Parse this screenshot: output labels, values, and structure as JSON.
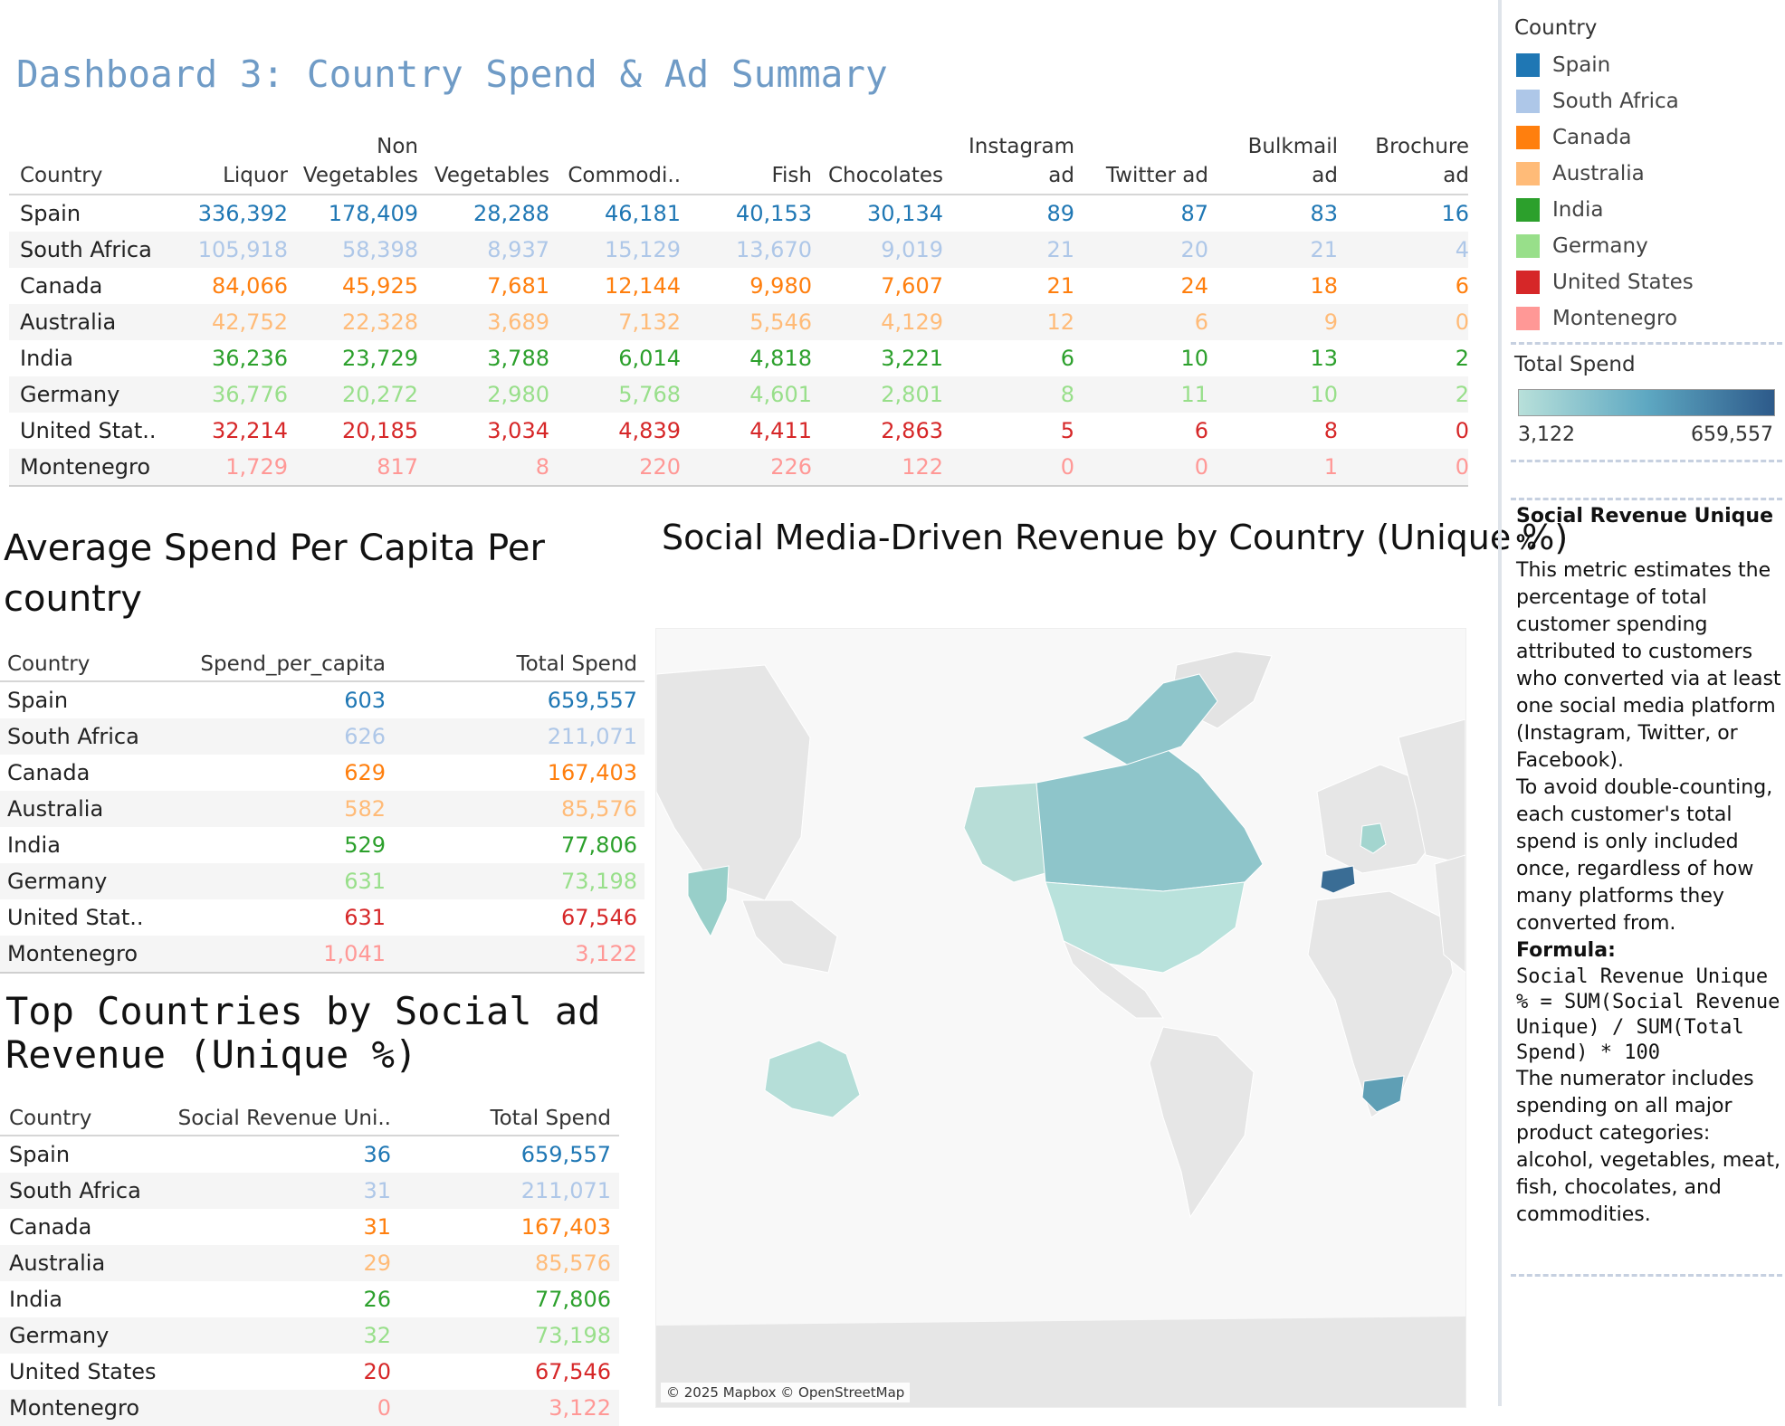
{
  "dashboard_title": "Dashboard 3: Country Spend & Ad Summary",
  "colors": {
    "Spain": "#1f77b4",
    "South Africa": "#aec7e8",
    "Canada": "#ff7f0e",
    "Australia": "#ffbb78",
    "India": "#2ca02c",
    "Germany": "#98df8a",
    "United States": "#d62728",
    "Montenegro": "#ff9896"
  },
  "top_table": {
    "headers": {
      "country": "Country",
      "liquor": "Liquor",
      "non_veg_1": "Non",
      "non_veg_2": "Vegetables",
      "vegetables": "Vegetables",
      "commodities": "Commodi..",
      "fish": "Fish",
      "chocolates": "Chocolates",
      "instagram_1": "Instagram",
      "instagram_2": "ad",
      "twitter": "Twitter ad",
      "bulkmail_1": "Bulkmail",
      "bulkmail_2": "ad",
      "brochure_1": "Brochure",
      "brochure_2": "ad"
    },
    "rows": [
      {
        "country": "Spain",
        "color_key": "Spain",
        "liquor": "336,392",
        "nonveg": "178,409",
        "veg": "28,288",
        "comm": "46,181",
        "fish": "40,153",
        "choc": "30,134",
        "insta": "89",
        "twitter": "87",
        "bulk": "83",
        "broch": "16"
      },
      {
        "country": "South Africa",
        "color_key": "South Africa",
        "liquor": "105,918",
        "nonveg": "58,398",
        "veg": "8,937",
        "comm": "15,129",
        "fish": "13,670",
        "choc": "9,019",
        "insta": "21",
        "twitter": "20",
        "bulk": "21",
        "broch": "4"
      },
      {
        "country": "Canada",
        "color_key": "Canada",
        "liquor": "84,066",
        "nonveg": "45,925",
        "veg": "7,681",
        "comm": "12,144",
        "fish": "9,980",
        "choc": "7,607",
        "insta": "21",
        "twitter": "24",
        "bulk": "18",
        "broch": "6"
      },
      {
        "country": "Australia",
        "color_key": "Australia",
        "liquor": "42,752",
        "nonveg": "22,328",
        "veg": "3,689",
        "comm": "7,132",
        "fish": "5,546",
        "choc": "4,129",
        "insta": "12",
        "twitter": "6",
        "bulk": "9",
        "broch": "0"
      },
      {
        "country": "India",
        "color_key": "India",
        "liquor": "36,236",
        "nonveg": "23,729",
        "veg": "3,788",
        "comm": "6,014",
        "fish": "4,818",
        "choc": "3,221",
        "insta": "6",
        "twitter": "10",
        "bulk": "13",
        "broch": "2"
      },
      {
        "country": "Germany",
        "color_key": "Germany",
        "liquor": "36,776",
        "nonveg": "20,272",
        "veg": "2,980",
        "comm": "5,768",
        "fish": "4,601",
        "choc": "2,801",
        "insta": "8",
        "twitter": "11",
        "bulk": "10",
        "broch": "2"
      },
      {
        "country": "United Stat..",
        "color_key": "United States",
        "liquor": "32,214",
        "nonveg": "20,185",
        "veg": "3,034",
        "comm": "4,839",
        "fish": "4,411",
        "choc": "2,863",
        "insta": "5",
        "twitter": "6",
        "bulk": "8",
        "broch": "0"
      },
      {
        "country": "Montenegro",
        "color_key": "Montenegro",
        "liquor": "1,729",
        "nonveg": "817",
        "veg": "8",
        "comm": "220",
        "fish": "226",
        "choc": "122",
        "insta": "0",
        "twitter": "0",
        "bulk": "1",
        "broch": "0"
      }
    ]
  },
  "per_capita": {
    "title": "Average Spend Per Capita Per country",
    "headers": {
      "country": "Country",
      "spend": "Spend_per_capita",
      "total": "Total Spend"
    },
    "rows": [
      {
        "country": "Spain",
        "color_key": "Spain",
        "spend": "603",
        "total": "659,557"
      },
      {
        "country": "South Africa",
        "color_key": "South Africa",
        "spend": "626",
        "total": "211,071"
      },
      {
        "country": "Canada",
        "color_key": "Canada",
        "spend": "629",
        "total": "167,403"
      },
      {
        "country": "Australia",
        "color_key": "Australia",
        "spend": "582",
        "total": "85,576"
      },
      {
        "country": "India",
        "color_key": "India",
        "spend": "529",
        "total": "77,806"
      },
      {
        "country": "Germany",
        "color_key": "Germany",
        "spend": "631",
        "total": "73,198"
      },
      {
        "country": "United Stat..",
        "color_key": "United States",
        "spend": "631",
        "total": "67,546"
      },
      {
        "country": "Montenegro",
        "color_key": "Montenegro",
        "spend": "1,041",
        "total": "3,122"
      }
    ]
  },
  "social": {
    "title": "Top Countries by Social ad Revenue (Unique %)",
    "headers": {
      "country": "Country",
      "social": "Social Revenue Uni..",
      "total": "Total Spend"
    },
    "rows": [
      {
        "country": "Spain",
        "color_key": "Spain",
        "social": "36",
        "total": "659,557"
      },
      {
        "country": "South Africa",
        "color_key": "South Africa",
        "social": "31",
        "total": "211,071"
      },
      {
        "country": "Canada",
        "color_key": "Canada",
        "social": "31",
        "total": "167,403"
      },
      {
        "country": "Australia",
        "color_key": "Australia",
        "social": "29",
        "total": "85,576"
      },
      {
        "country": "India",
        "color_key": "India",
        "social": "26",
        "total": "77,806"
      },
      {
        "country": "Germany",
        "color_key": "Germany",
        "social": "32",
        "total": "73,198"
      },
      {
        "country": "United States",
        "color_key": "United States",
        "social": "20",
        "total": "67,546"
      },
      {
        "country": "Montenegro",
        "color_key": "Montenegro",
        "social": "0",
        "total": "3,122"
      }
    ]
  },
  "map": {
    "title": "Social Media-Driven Revenue by Country (Unique %)",
    "attribution": "© 2025 Mapbox © OpenStreetMap"
  },
  "legend": {
    "title": "Country",
    "items": [
      "Spain",
      "South Africa",
      "Canada",
      "Australia",
      "India",
      "Germany",
      "United States",
      "Montenegro"
    ]
  },
  "total_spend_legend": {
    "title": "Total Spend",
    "min": "3,122",
    "max": "659,557",
    "color_low": "#b8e0da",
    "color_high": "#2d5a8a"
  },
  "description": {
    "heading": "Social Revenue Unique %",
    "para1": "This metric estimates the percentage of total customer spending attributed to customers who converted via at least one social media platform (Instagram, Twitter, or Facebook).",
    "para2": "To avoid double-counting, each customer's total spend is only included once, regardless of how many platforms they converted from.",
    "formula_label": "Formula:",
    "formula": "Social Revenue Unique % = SUM(Social Revenue Unique) / SUM(Total Spend) * 100",
    "para3": "The numerator includes spending on all major product categories: alcohol, vegetables, meat, fish, chocolates, and commodities."
  }
}
